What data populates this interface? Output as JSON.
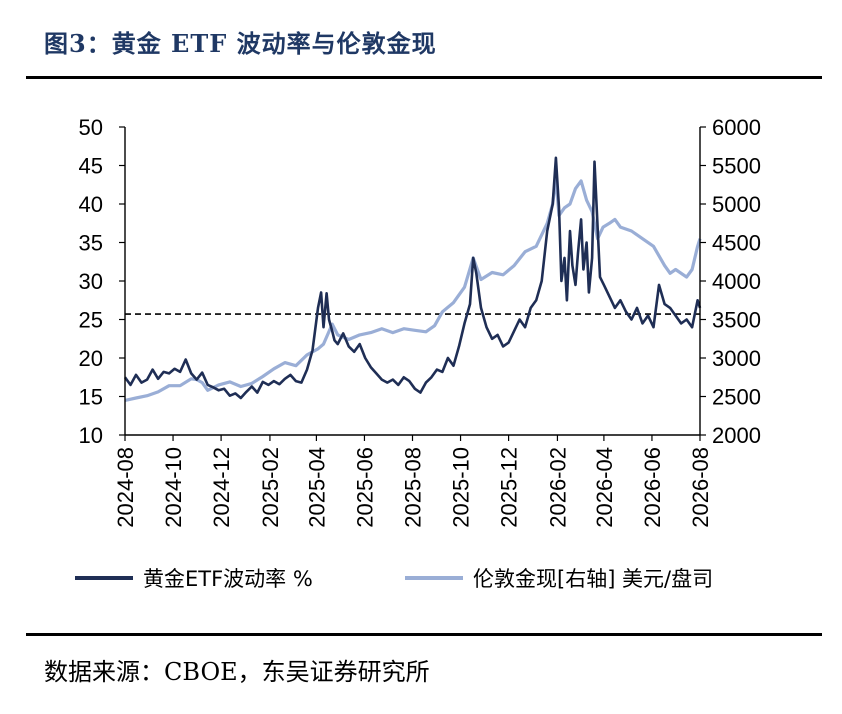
{
  "header": {
    "title": "图3：黄金 ETF 波动率与伦敦金现"
  },
  "footer": {
    "source": "数据来源：CBOE，东吴证券研究所"
  },
  "chart_data": {
    "type": "line",
    "x_ticks": [
      "2024-08",
      "2024-10",
      "2024-12",
      "2025-02",
      "2025-04",
      "2025-06",
      "2025-08",
      "2025-10",
      "2025-12",
      "2026-02",
      "2026-04",
      "2026-06",
      "2026-08"
    ],
    "y_left": {
      "lim": [
        10,
        50
      ],
      "ticks": [
        10,
        15,
        20,
        25,
        30,
        35,
        40,
        45,
        50
      ]
    },
    "y_right": {
      "lim": [
        2000,
        6000
      ],
      "ticks": [
        2000,
        2500,
        3000,
        3500,
        4000,
        4500,
        5000,
        5500,
        6000
      ]
    },
    "reference_line": {
      "axis": "left",
      "value": 25.7,
      "style": "dashed"
    },
    "colors": {
      "etf_vol": "#1f2e55",
      "gold": "#9aaed6"
    },
    "series": [
      {
        "name": "黄金ETF波动率  %",
        "axis": "left",
        "points": [
          [
            "2024-08-01",
            17.5
          ],
          [
            "2024-08-08",
            16.5
          ],
          [
            "2024-08-15",
            17.8
          ],
          [
            "2024-08-22",
            16.8
          ],
          [
            "2024-08-29",
            17.2
          ],
          [
            "2024-09-05",
            18.5
          ],
          [
            "2024-09-12",
            17.3
          ],
          [
            "2024-09-19",
            18.2
          ],
          [
            "2024-09-26",
            18.0
          ],
          [
            "2024-10-03",
            18.6
          ],
          [
            "2024-10-10",
            18.2
          ],
          [
            "2024-10-17",
            19.8
          ],
          [
            "2024-10-24",
            18.0
          ],
          [
            "2024-10-31",
            17.2
          ],
          [
            "2024-11-07",
            18.1
          ],
          [
            "2024-11-14",
            16.5
          ],
          [
            "2024-11-21",
            16.2
          ],
          [
            "2024-11-28",
            15.8
          ],
          [
            "2024-12-05",
            16.0
          ],
          [
            "2024-12-12",
            15.1
          ],
          [
            "2024-12-19",
            15.4
          ],
          [
            "2024-12-26",
            14.8
          ],
          [
            "2025-01-02",
            15.6
          ],
          [
            "2025-01-09",
            16.3
          ],
          [
            "2025-01-16",
            15.5
          ],
          [
            "2025-01-23",
            16.9
          ],
          [
            "2025-01-30",
            16.5
          ],
          [
            "2025-02-06",
            17.0
          ],
          [
            "2025-02-13",
            16.6
          ],
          [
            "2025-02-20",
            17.3
          ],
          [
            "2025-02-27",
            17.8
          ],
          [
            "2025-03-06",
            17.0
          ],
          [
            "2025-03-13",
            16.8
          ],
          [
            "2025-03-20",
            18.5
          ],
          [
            "2025-03-27",
            21.0
          ],
          [
            "2025-04-03",
            26.5
          ],
          [
            "2025-04-07",
            28.5
          ],
          [
            "2025-04-10",
            24.0
          ],
          [
            "2025-04-14",
            28.4
          ],
          [
            "2025-04-17",
            25.0
          ],
          [
            "2025-04-21",
            23.5
          ],
          [
            "2025-04-24",
            22.3
          ],
          [
            "2025-04-28",
            21.8
          ],
          [
            "2025-05-05",
            23.2
          ],
          [
            "2025-05-12",
            21.5
          ],
          [
            "2025-05-19",
            20.8
          ],
          [
            "2025-05-26",
            21.8
          ],
          [
            "2025-06-02",
            20.0
          ],
          [
            "2025-06-09",
            18.8
          ],
          [
            "2025-06-16",
            18.0
          ],
          [
            "2025-06-23",
            17.2
          ],
          [
            "2025-06-30",
            16.8
          ],
          [
            "2025-07-07",
            17.2
          ],
          [
            "2025-07-14",
            16.5
          ],
          [
            "2025-07-21",
            17.5
          ],
          [
            "2025-07-28",
            17.0
          ],
          [
            "2025-08-04",
            16.0
          ],
          [
            "2025-08-11",
            15.5
          ],
          [
            "2025-08-18",
            16.8
          ],
          [
            "2025-08-25",
            17.5
          ],
          [
            "2025-09-01",
            18.5
          ],
          [
            "2025-09-08",
            18.2
          ],
          [
            "2025-09-15",
            20.0
          ],
          [
            "2025-09-22",
            19.0
          ],
          [
            "2025-09-29",
            21.5
          ],
          [
            "2025-10-06",
            24.5
          ],
          [
            "2025-10-13",
            27.0
          ],
          [
            "2025-10-17",
            33.0
          ],
          [
            "2025-10-21",
            31.0
          ],
          [
            "2025-10-27",
            26.5
          ],
          [
            "2025-11-03",
            24.0
          ],
          [
            "2025-11-10",
            22.5
          ],
          [
            "2025-11-17",
            23.0
          ],
          [
            "2025-11-24",
            21.5
          ],
          [
            "2025-12-01",
            22.0
          ],
          [
            "2025-12-08",
            23.5
          ],
          [
            "2025-12-15",
            25.0
          ],
          [
            "2025-12-22",
            24.0
          ],
          [
            "2025-12-29",
            26.5
          ],
          [
            "2026-01-05",
            27.5
          ],
          [
            "2026-01-12",
            30.0
          ],
          [
            "2026-01-19",
            36.5
          ],
          [
            "2026-01-26",
            40.0
          ],
          [
            "2026-01-30",
            46.0
          ],
          [
            "2026-02-03",
            39.5
          ],
          [
            "2026-02-06",
            30.0
          ],
          [
            "2026-02-10",
            33.0
          ],
          [
            "2026-02-13",
            27.5
          ],
          [
            "2026-02-17",
            36.5
          ],
          [
            "2026-02-20",
            32.0
          ],
          [
            "2026-02-24",
            29.5
          ],
          [
            "2026-02-27",
            33.5
          ],
          [
            "2026-03-03",
            38.0
          ],
          [
            "2026-03-06",
            31.5
          ],
          [
            "2026-03-10",
            35.0
          ],
          [
            "2026-03-13",
            28.5
          ],
          [
            "2026-03-17",
            33.0
          ],
          [
            "2026-03-20",
            45.5
          ],
          [
            "2026-03-24",
            37.0
          ],
          [
            "2026-03-27",
            30.5
          ],
          [
            "2026-04-01",
            29.5
          ],
          [
            "2026-04-08",
            28.0
          ],
          [
            "2026-04-15",
            26.5
          ],
          [
            "2026-04-22",
            27.5
          ],
          [
            "2026-04-29",
            26.0
          ],
          [
            "2026-05-06",
            25.0
          ],
          [
            "2026-05-13",
            26.5
          ],
          [
            "2026-05-20",
            24.5
          ],
          [
            "2026-05-27",
            25.5
          ],
          [
            "2026-06-03",
            24.0
          ],
          [
            "2026-06-10",
            29.5
          ],
          [
            "2026-06-17",
            27.0
          ],
          [
            "2026-06-24",
            26.5
          ],
          [
            "2026-07-01",
            25.5
          ],
          [
            "2026-07-08",
            24.5
          ],
          [
            "2026-07-15",
            25.0
          ],
          [
            "2026-07-22",
            24.0
          ],
          [
            "2026-07-29",
            27.5
          ],
          [
            "2026-08-01",
            26.5
          ]
        ]
      },
      {
        "name": "伦敦金现[右轴] 美元/盘司",
        "axis": "right",
        "points": [
          [
            "2024-08-01",
            2450
          ],
          [
            "2024-08-15",
            2480
          ],
          [
            "2024-08-29",
            2510
          ],
          [
            "2024-09-12",
            2560
          ],
          [
            "2024-09-26",
            2640
          ],
          [
            "2024-10-10",
            2640
          ],
          [
            "2024-10-24",
            2730
          ],
          [
            "2024-10-31",
            2720
          ],
          [
            "2024-11-07",
            2680
          ],
          [
            "2024-11-14",
            2580
          ],
          [
            "2024-11-28",
            2650
          ],
          [
            "2024-12-12",
            2690
          ],
          [
            "2024-12-26",
            2630
          ],
          [
            "2025-01-09",
            2670
          ],
          [
            "2025-01-23",
            2760
          ],
          [
            "2025-02-06",
            2860
          ],
          [
            "2025-02-20",
            2940
          ],
          [
            "2025-03-06",
            2900
          ],
          [
            "2025-03-20",
            3040
          ],
          [
            "2025-04-03",
            3120
          ],
          [
            "2025-04-10",
            3180
          ],
          [
            "2025-04-21",
            3440
          ],
          [
            "2025-04-28",
            3300
          ],
          [
            "2025-05-12",
            3240
          ],
          [
            "2025-05-26",
            3300
          ],
          [
            "2025-06-09",
            3330
          ],
          [
            "2025-06-23",
            3380
          ],
          [
            "2025-07-07",
            3330
          ],
          [
            "2025-07-21",
            3380
          ],
          [
            "2025-08-04",
            3360
          ],
          [
            "2025-08-18",
            3340
          ],
          [
            "2025-08-29",
            3420
          ],
          [
            "2025-09-08",
            3600
          ],
          [
            "2025-09-22",
            3720
          ],
          [
            "2025-10-06",
            3920
          ],
          [
            "2025-10-17",
            4300
          ],
          [
            "2025-10-27",
            4020
          ],
          [
            "2025-11-10",
            4110
          ],
          [
            "2025-11-24",
            4080
          ],
          [
            "2025-12-08",
            4200
          ],
          [
            "2025-12-22",
            4380
          ],
          [
            "2026-01-05",
            4450
          ],
          [
            "2026-01-19",
            4750
          ],
          [
            "2026-01-26",
            5000
          ],
          [
            "2026-01-30",
            5350
          ],
          [
            "2026-02-03",
            4850
          ],
          [
            "2026-02-10",
            4950
          ],
          [
            "2026-02-17",
            5000
          ],
          [
            "2026-02-24",
            5200
          ],
          [
            "2026-03-03",
            5300
          ],
          [
            "2026-03-10",
            5050
          ],
          [
            "2026-03-17",
            4900
          ],
          [
            "2026-03-24",
            4550
          ],
          [
            "2026-03-31",
            4700
          ],
          [
            "2026-04-08",
            4750
          ],
          [
            "2026-04-15",
            4800
          ],
          [
            "2026-04-22",
            4700
          ],
          [
            "2026-05-06",
            4650
          ],
          [
            "2026-05-20",
            4550
          ],
          [
            "2026-06-03",
            4450
          ],
          [
            "2026-06-17",
            4200
          ],
          [
            "2026-06-24",
            4100
          ],
          [
            "2026-07-01",
            4150
          ],
          [
            "2026-07-15",
            4050
          ],
          [
            "2026-07-22",
            4150
          ],
          [
            "2026-07-29",
            4450
          ],
          [
            "2026-08-01",
            4550
          ]
        ]
      }
    ]
  }
}
